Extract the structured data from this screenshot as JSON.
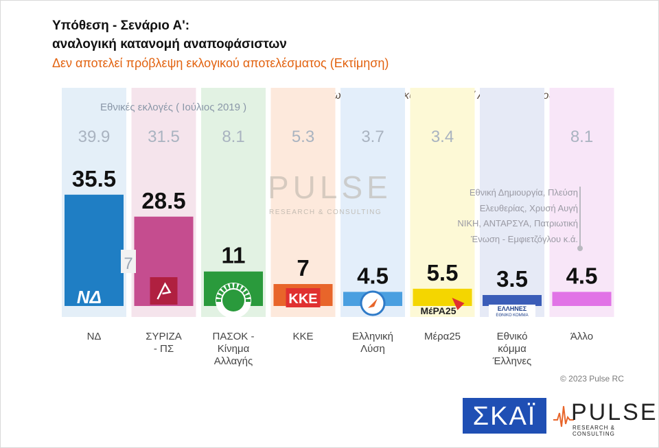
{
  "header": {
    "title_line1": "Υπόθεση - Σενάριο Α':",
    "title_line2": "αναλογική κατανομή αναποφάσιστων",
    "subtitle": "Δεν αποτελεί πρόβλεψη εκλογικού αποτελέσματος   (Εκτίμηση)",
    "note": "( Χωρίς Λευκό / Άκυρο / Αποχή / Αναποφάσιστους / ΔΑ )",
    "previous_label": "Εθνικές εκλογές  ( Ιούλιος 2019 )"
  },
  "chart_data": {
    "type": "bar",
    "categories": [
      "ΝΔ",
      "ΣΥΡΙΖΑ - ΠΣ",
      "ΠΑΣΟΚ - Κίνημα Αλλαγής",
      "ΚΚΕ",
      "Ελληνική Λύση",
      "Μέρα25",
      "Εθνικό κόμμα Έλληνες",
      "Άλλο"
    ],
    "category_lines": [
      [
        "ΝΔ"
      ],
      [
        "ΣΥΡΙΖΑ",
        "- ΠΣ"
      ],
      [
        "ΠΑΣΟΚ -",
        "Κίνημα",
        "Αλλαγής"
      ],
      [
        "ΚΚΕ"
      ],
      [
        "Ελληνική",
        "Λύση"
      ],
      [
        "Μέρα25"
      ],
      [
        "Εθνικό",
        "κόμμα",
        "Έλληνες"
      ],
      [
        "Άλλο"
      ]
    ],
    "series": [
      {
        "name": "Εκτίμηση",
        "values": [
          35.5,
          28.5,
          11,
          7,
          4.5,
          5.5,
          3.5,
          4.5
        ]
      },
      {
        "name": "Εθνικές εκλογές ( Ιούλιος 2019 )",
        "values": [
          39.9,
          31.5,
          8.1,
          5.3,
          3.7,
          3.4,
          null,
          8.1
        ]
      }
    ],
    "labels": [
      "35.5",
      "28.5",
      "11",
      "7",
      "4.5",
      "5.5",
      "3.5",
      "4.5"
    ],
    "previous_labels": [
      "39.9",
      "31.5",
      "8.1",
      "5.3",
      "3.7",
      "3.4",
      "",
      "8.1"
    ],
    "colors": [
      "#1f7ec4",
      "#c54d8f",
      "#2a9a3c",
      "#e8652a",
      "#4a9fe0",
      "#f4d600",
      "#3b5db8",
      "#e173e6"
    ],
    "bg_colors": [
      "#e4eff8",
      "#f5e4ec",
      "#e2f2e3",
      "#fde9dc",
      "#e3eefa",
      "#fdf9d6",
      "#e6eaf6",
      "#f8e6f8"
    ],
    "logos": [
      "ΝΔ",
      "ΣΥΡΙΖΑ",
      "ΠΑΣΟΚ",
      "ΚΚΕ",
      "",
      "ΜέΡΑ25",
      "ΕΛΛΗΝΕΣ ΕΘΝΙΚΟ ΚΟΜΜΑ",
      ""
    ],
    "grid": false,
    "annotation_lines": [
      "Εθνική Δημιουργία, Πλεύση",
      "Ελευθερίας, Χρυσή Αυγή",
      "ΝΙΚΗ, ΑΝΤΑΡΣΥΑ, Πατριωτική",
      "Ένωση - Εμφιετζόγλου   κ.ά."
    ]
  },
  "footer": {
    "copyright": "© 2023 Pulse RC",
    "skai_logo": "ΣΚΑΪ",
    "pulse_logo": "PULSE",
    "pulse_tagline": "RESEARCH & CONSULTING"
  },
  "watermark": {
    "name": "PULSE",
    "tagline": "RESEARCH & CONSULTING"
  }
}
